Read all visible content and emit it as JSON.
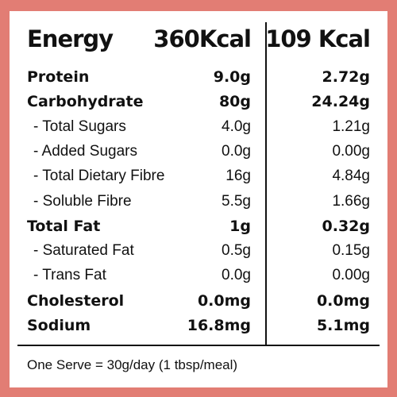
{
  "table": {
    "header": [
      "Energy",
      "360Kcal",
      "109 Kcal"
    ],
    "rows": [
      [
        "Protein",
        "9.0g",
        "2.72g"
      ],
      [
        "Carbohydrate",
        "80g",
        "24.24g"
      ],
      [
        "- Total Sugars",
        "4.0g",
        "1.21g"
      ],
      [
        "- Added Sugars",
        "0.0g",
        "0.00g"
      ],
      [
        "- Total Dietary Fibre",
        "16g",
        "4.84g"
      ],
      [
        "- Soluble Fibre",
        "5.5g",
        "1.66g"
      ],
      [
        "Total Fat",
        "1g",
        "0.32g"
      ],
      [
        "- Saturated Fat",
        "0.5g",
        "0.15g"
      ],
      [
        "- Trans Fat",
        "0.0g",
        "0.00g"
      ],
      [
        "Cholesterol",
        "0.0mg",
        "0.0mg"
      ],
      [
        "Sodium",
        "16.8mg",
        "5.1mg"
      ]
    ],
    "bold_rows": [
      0,
      1,
      6,
      9,
      10
    ]
  },
  "footer": "One Serve = 30g/day (1 tbsp/meal)"
}
